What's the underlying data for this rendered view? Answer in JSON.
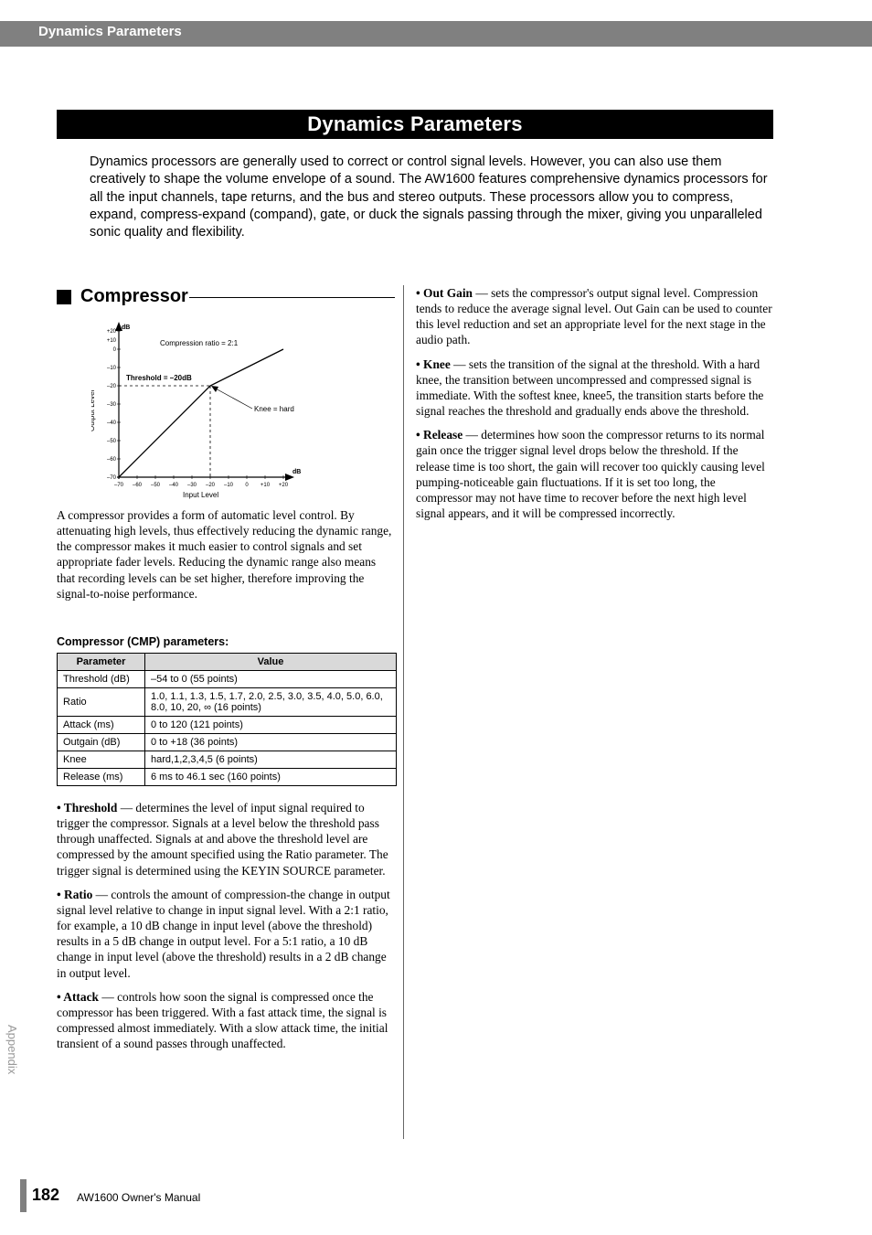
{
  "header": {
    "running_head": "Dynamics Parameters"
  },
  "title": "Dynamics Parameters",
  "intro": "Dynamics processors are generally used to correct or control signal levels. However, you can also use them creatively to shape the volume envelope of a sound. The AW1600 features comprehensive dynamics processors for all the input channels, tape returns, and the bus and stereo outputs. These processors allow you to compress, expand, compress-expand (compand), gate, or duck the signals passing through the mixer, giving you unparalleled sonic quality and flexibility.",
  "section": {
    "title": "Compressor"
  },
  "graph": {
    "y_label": "Output Level",
    "x_label": "Input Level",
    "y_unit_top": "dB",
    "x_unit_right": "dB",
    "ratio_annotation": "Compression ratio = 2:1",
    "threshold_annotation": "Threshold = –20dB",
    "knee_annotation": "Knee = hard",
    "x_ticks": [
      "–70",
      "–60",
      "–50",
      "–40",
      "–30",
      "–20",
      "–10",
      "0",
      "+10",
      "+20"
    ],
    "y_ticks": [
      "–70",
      "–60",
      "–50",
      "–40",
      "–30",
      "–20",
      "–10",
      "0",
      "+10",
      "+20"
    ],
    "threshold_x": -20,
    "threshold_y": -20,
    "xlim": [
      -70,
      20
    ],
    "ylim": [
      -70,
      20
    ],
    "axis_color": "#000000",
    "grid_color": "#000000",
    "background_color": "#ffffff"
  },
  "left": {
    "intro_para": "A compressor provides a form of automatic level control. By attenuating high levels, thus effectively reducing the dynamic range, the compressor makes it much easier to control signals and set appropriate fader levels. Reducing the dynamic range also means that recording levels can be set higher, therefore improving the signal-to-noise performance.",
    "table_caption": "Compressor (CMP) parameters:",
    "table": {
      "columns": [
        "Parameter",
        "Value"
      ],
      "rows": [
        [
          "Threshold (dB)",
          "–54 to 0 (55 points)"
        ],
        [
          "Ratio",
          "1.0, 1.1, 1.3, 1.5, 1.7, 2.0, 2.5, 3.0, 3.5, 4.0, 5.0, 6.0, 8.0, 10, 20, ∞ (16 points)"
        ],
        [
          "Attack (ms)",
          "0 to 120 (121 points)"
        ],
        [
          "Outgain (dB)",
          "0 to +18 (36 points)"
        ],
        [
          "Knee",
          "hard,1,2,3,4,5 (6 points)"
        ],
        [
          "Release (ms)",
          "6 ms to 46.1 sec (160 points)"
        ]
      ]
    },
    "paras": [
      {
        "term": "Threshold",
        "body": " — determines the level of input signal required to trigger the compressor. Signals at a level below the threshold pass through unaffected. Signals at and above the threshold level are compressed by the amount specified using the Ratio parameter. The trigger signal is determined using the KEYIN SOURCE parameter."
      },
      {
        "term": "Ratio",
        "body": " — controls the amount of compression-the change in output signal level relative to change in input signal level. With a 2:1 ratio, for example, a 10 dB change in input level (above the threshold) results in a 5 dB change in output level. For a 5:1 ratio, a 10 dB change in input level (above the threshold) results in a 2 dB change in output level."
      },
      {
        "term": "Attack",
        "body": " — controls how soon the signal is compressed once the compressor has been triggered. With a fast attack time, the signal is compressed almost immediately. With a slow attack time, the initial transient of a sound passes through unaffected."
      }
    ]
  },
  "right": {
    "paras": [
      {
        "term": "Out Gain",
        "body": " — sets the compressor's output signal level. Compression tends to reduce the average signal level. Out Gain can be used to counter this level reduction and set an appropriate level for the next stage in the audio path."
      },
      {
        "term": "Knee",
        "body": " — sets the transition of the signal at the threshold. With a hard knee, the transition between uncompressed and compressed signal is immediate. With the softest knee, knee5, the transition starts before the signal reaches the threshold and gradually ends above the threshold."
      },
      {
        "term": "Release",
        "body": " — determines how soon the compressor returns to its normal gain once the trigger signal level drops below the threshold. If the release time is too short, the gain will recover too quickly causing level pumping-noticeable gain fluctuations. If it is set too long, the compressor may not have time to recover before the next high level signal appears, and it will be compressed incorrectly."
      }
    ]
  },
  "side_tab": "Appendix",
  "footer": {
    "page_number": "182",
    "manual": "AW1600  Owner's Manual"
  }
}
